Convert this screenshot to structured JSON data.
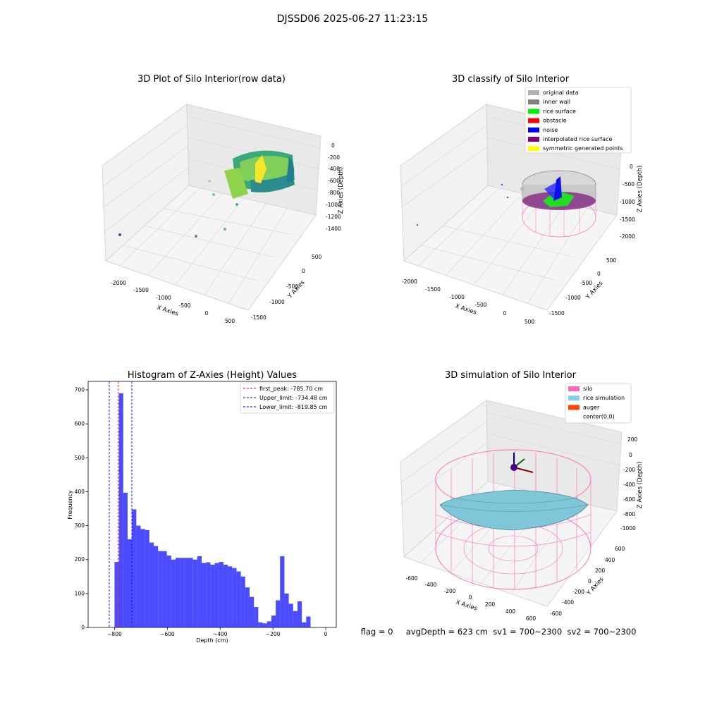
{
  "suptitle": "DJSSD06 2025-06-27 11:23:15",
  "footer": "flag = 0     avgDepth = 623 cm  sv1 = 700~2300  sv2 = 700~2300",
  "panel_raw": {
    "title": "3D Plot of Silo Interior(row data)",
    "xlabel": "X Axies",
    "ylabel": "Y Axies",
    "zlabel": "Z Axies (Depth)",
    "xticks": [
      "-2000",
      "-1500",
      "-1000",
      "-500",
      "0",
      "500"
    ],
    "yticks": [
      "500",
      "0",
      "-500",
      "-1000",
      "-1500"
    ],
    "zticks": [
      "0",
      "-200",
      "-400",
      "-600",
      "-800",
      "-1000",
      "-1200",
      "-1400"
    ]
  },
  "panel_classify": {
    "title": "3D classify of Silo Interior",
    "xlabel": "X Axies",
    "ylabel": "Y Axies",
    "zlabel": "Z Axies (Depth)",
    "xticks": [
      "-2000",
      "-1500",
      "-1000",
      "-500",
      "0",
      "500"
    ],
    "yticks": [
      "500",
      "0",
      "-500",
      "-1000",
      "-1500"
    ],
    "zticks": [
      "0",
      "-500",
      "-1000",
      "-1500",
      "-2000"
    ],
    "legend": [
      {
        "label": "original data",
        "color": "#b0b0b0"
      },
      {
        "label": "inner wall",
        "color": "#808080"
      },
      {
        "label": "rice surface",
        "color": "#00ee00"
      },
      {
        "label": "obstacle",
        "color": "#ff0000"
      },
      {
        "label": "noise",
        "color": "#0000ff"
      },
      {
        "label": "interpolated rice surface",
        "color": "#800080"
      },
      {
        "label": "symmetric generated points",
        "color": "#ffff00"
      }
    ]
  },
  "panel_sim": {
    "title": "3D simulation of Silo Interior",
    "xlabel": "X Axies",
    "ylabel": "Y Axies",
    "zlabel": "Z Axies (Depth)",
    "xticks": [
      "-600",
      "-400",
      "-200",
      "0",
      "200",
      "400",
      "600"
    ],
    "yticks": [
      "600",
      "400",
      "200",
      "0",
      "-200",
      "-400",
      "-600"
    ],
    "zticks": [
      "200",
      "0",
      "-200",
      "-400",
      "-600",
      "-800",
      "-1000"
    ],
    "legend": [
      {
        "label": "silo",
        "color": "#ff69b4"
      },
      {
        "label": "rice simulation",
        "color": "#87ceeb"
      },
      {
        "label": "auger",
        "color": "#ff4500"
      },
      {
        "label": "center(0,0)",
        "color": "#ffffff"
      }
    ]
  },
  "chart_data": {
    "type": "bar",
    "title": "Histogram of Z-Axies (Height) Values",
    "xlabel": "Depth (cm)",
    "ylabel": "Frequency",
    "xlim": [
      -900,
      40
    ],
    "ylim": [
      0,
      725
    ],
    "xticks": [
      -800,
      -600,
      -400,
      -200,
      0
    ],
    "yticks": [
      0,
      100,
      200,
      300,
      400,
      500,
      600,
      700
    ],
    "bar_color": "#0000ff",
    "bin_width": 16.5,
    "bin_starts": [
      -800,
      -783.5,
      -767,
      -750.5,
      -734,
      -717.5,
      -701,
      -684.5,
      -668,
      -651.5,
      -635,
      -618.5,
      -602,
      -585.5,
      -569,
      -552.5,
      -536,
      -519.5,
      -503,
      -486.5,
      -470,
      -453.5,
      -437,
      -420.5,
      -404,
      -387.5,
      -371,
      -354.5,
      -338,
      -321.5,
      -305,
      -288.5,
      -272,
      -255.5,
      -239,
      -222.5,
      -206,
      -189.5,
      -173,
      -156.5,
      -140,
      -123.5,
      -107,
      -90.5,
      -74,
      -57.5,
      -41,
      -24.5,
      -8
    ],
    "values": [
      193,
      690,
      397,
      260,
      348,
      300,
      290,
      287,
      250,
      240,
      225,
      225,
      212,
      200,
      205,
      205,
      205,
      205,
      200,
      210,
      190,
      192,
      185,
      190,
      193,
      185,
      180,
      175,
      165,
      150,
      118,
      90,
      60,
      15,
      12,
      18,
      35,
      80,
      210,
      100,
      70,
      48,
      77,
      15,
      32,
      0,
      0,
      0,
      0
    ],
    "vlines": [
      {
        "label": "first_peak: -785.70 cm",
        "x": -785.7,
        "color": "#ff0000"
      },
      {
        "label": "Upper_limit: -734.48 cm",
        "x": -734.48,
        "color": "#0000ff"
      },
      {
        "label": "Lower_limit: -819.85 cm",
        "x": -819.85,
        "color": "#0000ff"
      }
    ],
    "legend_position": "top-right"
  }
}
